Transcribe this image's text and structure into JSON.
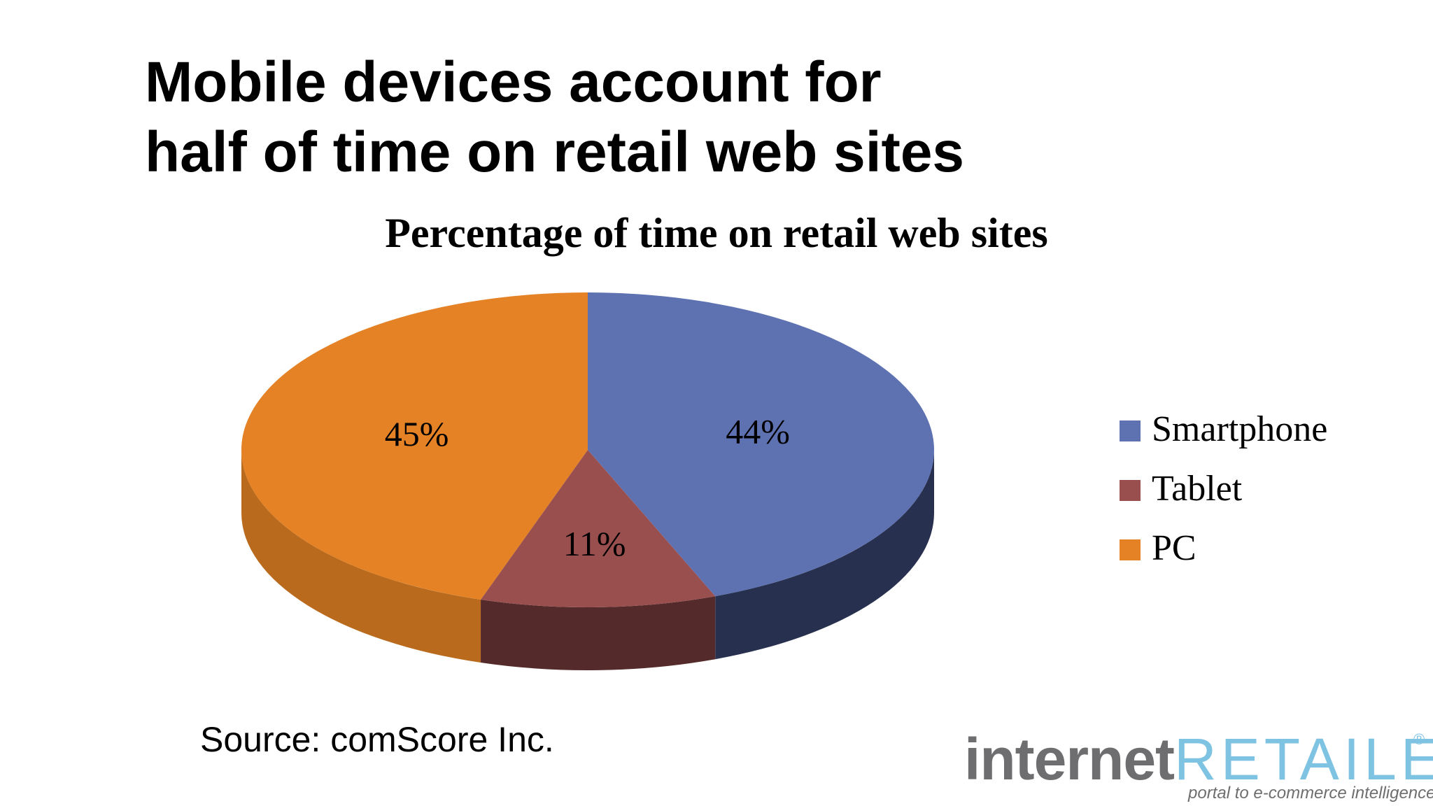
{
  "headline": {
    "line1": "Mobile devices account for",
    "line2": "half of time on retail web sites"
  },
  "chart_data": {
    "type": "pie",
    "style": "3d",
    "title": "Percentage of time on retail web sites",
    "slices": [
      {
        "name": "Smartphone",
        "value": 44,
        "label": "44%",
        "color": "#5e72b2",
        "side_color": "#28304f"
      },
      {
        "name": "Tablet",
        "value": 11,
        "label": "11%",
        "color": "#9a4f4f",
        "side_color": "#552a2a"
      },
      {
        "name": "PC",
        "value": 45,
        "label": "45%",
        "color": "#e48225",
        "side_color": "#b96a1c"
      }
    ],
    "legend": {
      "placement": "right",
      "entries": [
        "Smartphone",
        "Tablet",
        "PC"
      ]
    }
  },
  "source": "Source: comScore Inc.",
  "logo": {
    "part1": "internet",
    "part2": "RETAILER",
    "registered": "®",
    "tagline": "portal to e-commerce intelligence"
  }
}
